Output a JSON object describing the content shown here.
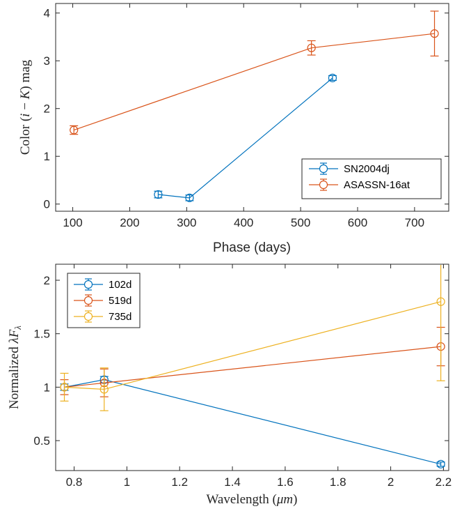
{
  "chart_data": [
    {
      "type": "line",
      "title": "",
      "xlabel": "Phase (days)",
      "ylabel": "Color (i − K) mag",
      "xlim": [
        70,
        760
      ],
      "ylim": [
        -0.15,
        4.2
      ],
      "xticks": [
        "100",
        "200",
        "300",
        "400",
        "500",
        "600",
        "700"
      ],
      "yticks": [
        "0",
        "1",
        "2",
        "3",
        "4"
      ],
      "legend_position": "bottom-right",
      "markers": "open circles with error bars",
      "series": [
        {
          "name": "SN2004dj",
          "color": "#0072BD",
          "x": [
            250,
            305,
            556
          ],
          "y": [
            0.2,
            0.13,
            2.64
          ],
          "yerr": [
            0.07,
            0.06,
            0.05
          ]
        },
        {
          "name": "ASASSN-16at",
          "color": "#D95319",
          "x": [
            102,
            519,
            735
          ],
          "y": [
            1.55,
            3.27,
            3.57
          ],
          "yerr": [
            0.09,
            0.15,
            0.47
          ]
        }
      ]
    },
    {
      "type": "line",
      "title": "",
      "xlabel": "Wavelength (μm)",
      "ylabel": "Normalized λFλ",
      "xlim": [
        0.73,
        2.22
      ],
      "ylim": [
        0.22,
        2.15
      ],
      "xticks": [
        "0.8",
        "1",
        "1.2",
        "1.4",
        "1.6",
        "1.8",
        "2",
        "2.2"
      ],
      "yticks": [
        "0.5",
        "1",
        "1.5",
        "2"
      ],
      "legend_position": "top-left",
      "markers": "open circles with error bars",
      "series": [
        {
          "name": "102d",
          "color": "#0072BD",
          "x": [
            0.763,
            0.914,
            2.19
          ],
          "y": [
            1.0,
            1.07,
            0.28
          ],
          "yerr": [
            0.03,
            0.03,
            0.02
          ]
        },
        {
          "name": "519d",
          "color": "#D95319",
          "x": [
            0.763,
            0.914,
            2.19
          ],
          "y": [
            1.0,
            1.04,
            1.38
          ],
          "yerr": [
            0.07,
            0.13,
            0.18
          ]
        },
        {
          "name": "735d",
          "color": "#EDB120",
          "x": [
            0.763,
            0.914,
            2.19
          ],
          "y": [
            1.0,
            0.98,
            1.8
          ],
          "yerr": [
            0.13,
            0.2,
            0.74
          ]
        }
      ]
    }
  ]
}
